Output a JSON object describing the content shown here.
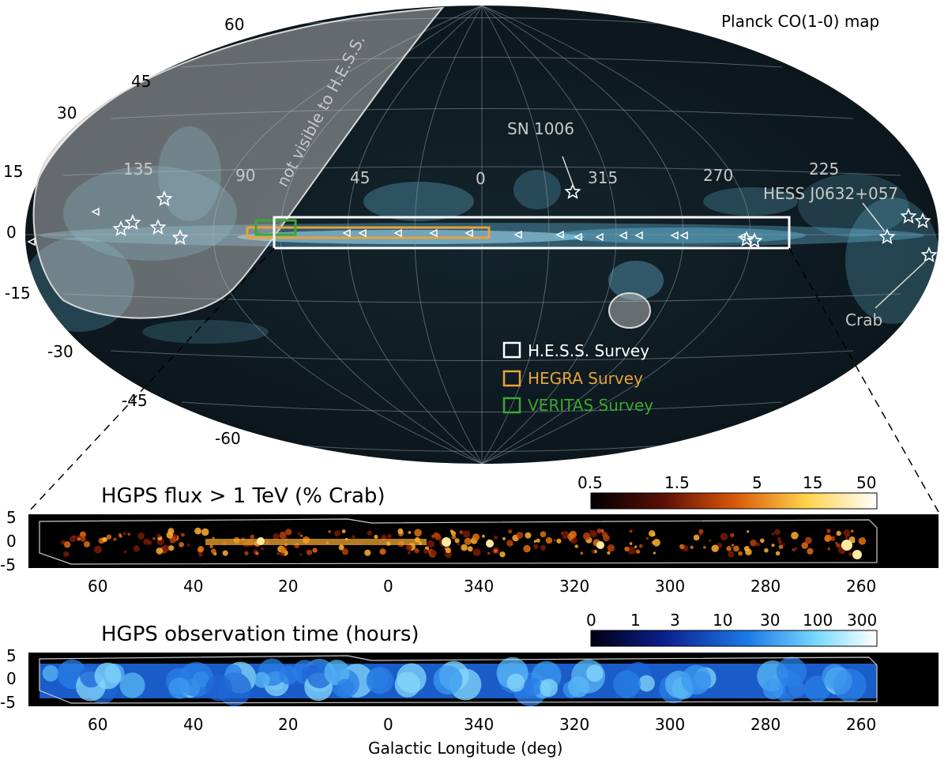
{
  "skymap": {
    "title": "Planck CO(1-0) map",
    "longitude_labels": [
      "135",
      "90",
      "45",
      "0",
      "315",
      "270",
      "225"
    ],
    "latitude_labels": [
      "60",
      "45",
      "30",
      "15",
      "0",
      "-15",
      "-30",
      "-45",
      "-60"
    ],
    "not_visible_label": "not visible to H.E.S.S.",
    "annotations": {
      "sn1006": "SN 1006",
      "hess_j0632": "HESS J0632+057",
      "crab": "Crab"
    },
    "legend": [
      {
        "label": "H.E.S.S. Survey",
        "color": "#ffffff"
      },
      {
        "label": "HEGRA Survey",
        "color": "#e8a33a"
      },
      {
        "label": "VERITAS Survey",
        "color": "#3aa830"
      }
    ],
    "colors": {
      "sky_bg": "#0d1a22",
      "co_emission": "#6cc6e8",
      "mask": "#cfcfcf"
    }
  },
  "flux_panel": {
    "title": "HGPS flux > 1 TeV (% Crab)",
    "colorbar_ticks": [
      "0.5",
      "1.5",
      "5",
      "15",
      "50"
    ],
    "y_ticks": [
      "5",
      "0",
      "-5"
    ],
    "x_ticks": [
      "60",
      "40",
      "20",
      "0",
      "340",
      "320",
      "300",
      "280",
      "260"
    ]
  },
  "time_panel": {
    "title": "HGPS observation time (hours)",
    "colorbar_ticks": [
      "0",
      "1",
      "3",
      "10",
      "30",
      "100",
      "300"
    ],
    "y_ticks": [
      "5",
      "0",
      "-5"
    ],
    "x_ticks": [
      "60",
      "40",
      "20",
      "0",
      "340",
      "320",
      "300",
      "280",
      "260"
    ],
    "xlabel": "Galactic Longitude (deg)"
  }
}
